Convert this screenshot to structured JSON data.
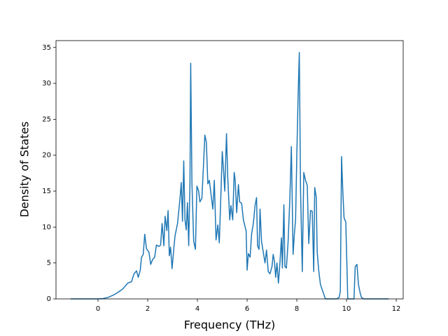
{
  "chart_data": {
    "type": "line",
    "x_label": "Frequency (THz)",
    "y_label": "Density of States",
    "color": "#1f77b4",
    "x": [
      -1.1,
      -0.5,
      0,
      0.2,
      0.4,
      0.6,
      0.8,
      1.0,
      1.2,
      1.35,
      1.45,
      1.55,
      1.62,
      1.7,
      1.75,
      1.82,
      1.88,
      1.95,
      2.05,
      2.12,
      2.2,
      2.28,
      2.35,
      2.45,
      2.52,
      2.58,
      2.65,
      2.7,
      2.77,
      2.82,
      2.87,
      2.92,
      2.98,
      3.05,
      3.1,
      3.2,
      3.3,
      3.35,
      3.4,
      3.45,
      3.5,
      3.55,
      3.6,
      3.65,
      3.7,
      3.73,
      3.78,
      3.85,
      3.92,
      3.98,
      4.05,
      4.1,
      4.18,
      4.25,
      4.3,
      4.36,
      4.42,
      4.48,
      4.55,
      4.62,
      4.68,
      4.75,
      4.82,
      4.88,
      4.95,
      5.0,
      5.05,
      5.1,
      5.17,
      5.22,
      5.3,
      5.35,
      5.42,
      5.48,
      5.52,
      5.58,
      5.65,
      5.7,
      5.78,
      5.85,
      5.92,
      5.96,
      6.0,
      6.05,
      6.12,
      6.18,
      6.25,
      6.32,
      6.38,
      6.42,
      6.48,
      6.52,
      6.58,
      6.65,
      6.72,
      6.78,
      6.85,
      6.92,
      7.0,
      7.05,
      7.1,
      7.15,
      7.2,
      7.26,
      7.32,
      7.38,
      7.42,
      7.48,
      7.52,
      7.58,
      7.65,
      7.72,
      7.78,
      7.85,
      7.9,
      7.95,
      8.0,
      8.05,
      8.1,
      8.15,
      8.22,
      8.28,
      8.35,
      8.42,
      8.48,
      8.55,
      8.62,
      8.68,
      8.72,
      8.78,
      8.82,
      8.88,
      8.95,
      9.05,
      9.15,
      9.4,
      9.6,
      9.7,
      9.75,
      9.8,
      9.85,
      9.9,
      9.97,
      10.05,
      10.2,
      10.3,
      10.35,
      10.42,
      10.48,
      10.55,
      10.6,
      10.7,
      11.0,
      11.7
    ],
    "values": [
      0,
      0,
      0,
      0.05,
      0.2,
      0.5,
      0.9,
      1.4,
      2.2,
      2.4,
      3.5,
      3.9,
      3.0,
      4.0,
      5.8,
      6.2,
      9.0,
      7.0,
      6.5,
      4.8,
      5.5,
      5.8,
      7.5,
      7.3,
      7.5,
      10.5,
      7.4,
      11.5,
      9.5,
      12.3,
      6.0,
      7.2,
      4.2,
      7.0,
      8.8,
      10.5,
      14.0,
      16.2,
      10.8,
      19.2,
      11.0,
      9.6,
      13.4,
      7.4,
      16.0,
      32.8,
      16.0,
      8.0,
      6.9,
      15.7,
      15.0,
      13.5,
      14.0,
      19.0,
      22.8,
      21.8,
      16.0,
      16.5,
      14.5,
      12.5,
      16.5,
      8.2,
      10.3,
      7.8,
      15.0,
      20.5,
      18.0,
      15.0,
      23.0,
      17.0,
      11.0,
      13.0,
      11.0,
      17.6,
      16.5,
      12.0,
      15.9,
      13.5,
      13.3,
      11.0,
      10.0,
      9.5,
      4.0,
      6.3,
      5.8,
      9.0,
      10.5,
      13.0,
      14.1,
      7.4,
      6.9,
      12.5,
      8.0,
      6.5,
      5.0,
      6.8,
      3.8,
      3.5,
      4.5,
      6.2,
      5.2,
      3.0,
      5.0,
      2.2,
      5.0,
      8.5,
      4.3,
      13.1,
      4.5,
      4.3,
      8.0,
      14.0,
      21.2,
      6.2,
      9.0,
      11.0,
      20.0,
      28.0,
      34.3,
      15.0,
      3.8,
      17.6,
      16.5,
      15.8,
      7.7,
      12.3,
      12.2,
      3.8,
      15.5,
      14.2,
      6.5,
      4.0,
      2.0,
      1.0,
      0,
      0,
      0,
      0.2,
      1.0,
      19.8,
      15.0,
      11.3,
      10.7,
      0,
      0,
      0,
      4.5,
      4.8,
      2.0,
      0.8,
      0.2,
      0,
      0,
      0
    ],
    "xlim": [
      -1.69,
      12.28
    ],
    "ylim": [
      0,
      35.95
    ],
    "xticks": [
      0,
      2,
      4,
      6,
      8,
      10,
      12
    ],
    "yticks": [
      0,
      5,
      10,
      15,
      20,
      25,
      30,
      35
    ]
  }
}
